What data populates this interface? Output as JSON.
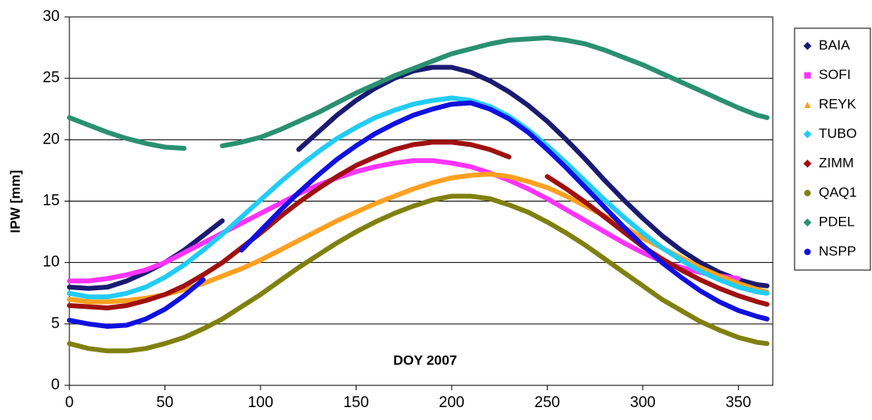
{
  "chart_data": {
    "type": "line",
    "xlabel": "DOY 2007",
    "ylabel": "IPW [mm]",
    "x": [
      0,
      10,
      20,
      30,
      40,
      50,
      60,
      70,
      80,
      90,
      100,
      110,
      120,
      130,
      140,
      150,
      160,
      170,
      180,
      190,
      200,
      210,
      220,
      230,
      240,
      250,
      260,
      270,
      280,
      290,
      300,
      310,
      320,
      330,
      340,
      350,
      360,
      365
    ],
    "series": [
      {
        "name": "BAIA",
        "color": "#1a1a72",
        "marker": "diamond",
        "values": [
          8.0,
          7.9,
          8.0,
          8.5,
          9.2,
          10.0,
          11.0,
          12.2,
          13.4,
          null,
          null,
          null,
          19.2,
          20.6,
          22.0,
          23.2,
          24.2,
          25.0,
          25.6,
          25.9,
          25.9,
          25.5,
          24.8,
          23.9,
          22.8,
          21.5,
          20.0,
          18.4,
          16.7,
          15.1,
          13.6,
          12.2,
          11.0,
          10.0,
          9.2,
          8.6,
          8.2,
          8.1
        ]
      },
      {
        "name": "SOFI",
        "color": "#ff33ff",
        "marker": "square",
        "values": [
          8.5,
          8.5,
          8.7,
          9.0,
          9.4,
          10.0,
          10.8,
          11.6,
          12.4,
          13.2,
          14.0,
          14.8,
          15.6,
          16.3,
          16.9,
          17.4,
          17.8,
          18.1,
          18.3,
          18.3,
          18.1,
          17.8,
          17.3,
          16.7,
          16.0,
          15.2,
          14.3,
          13.4,
          12.5,
          11.6,
          10.8,
          10.1,
          9.6,
          9.2,
          8.9,
          8.7,
          null,
          null
        ]
      },
      {
        "name": "REYK",
        "color": "#ffa020",
        "marker": "triangle",
        "values": [
          7.0,
          6.8,
          6.8,
          6.9,
          7.1,
          7.4,
          7.8,
          8.3,
          8.9,
          9.5,
          10.2,
          11.0,
          11.8,
          12.6,
          13.4,
          14.1,
          14.8,
          15.4,
          16.0,
          16.5,
          16.9,
          17.1,
          17.2,
          17.0,
          16.6,
          16.1,
          15.4,
          14.6,
          13.8,
          12.9,
          12.0,
          11.2,
          10.4,
          9.6,
          8.9,
          8.3,
          7.8,
          7.6
        ]
      },
      {
        "name": "TUBO",
        "color": "#22ccf5",
        "marker": "diamond",
        "values": [
          7.5,
          7.2,
          7.2,
          7.5,
          8.0,
          8.8,
          9.8,
          11.0,
          12.3,
          13.7,
          15.1,
          16.5,
          17.8,
          19.0,
          20.1,
          21.0,
          21.8,
          22.4,
          22.9,
          23.2,
          23.4,
          23.2,
          22.7,
          21.9,
          20.8,
          19.5,
          18.1,
          16.6,
          15.1,
          13.7,
          12.4,
          11.2,
          10.2,
          9.3,
          8.6,
          8.0,
          7.6,
          7.5
        ]
      },
      {
        "name": "ZIMM",
        "color": "#a01010",
        "marker": "diamond",
        "values": [
          6.5,
          6.4,
          6.3,
          6.5,
          6.9,
          7.4,
          8.1,
          9.0,
          10.0,
          11.2,
          12.4,
          13.7,
          14.9,
          16.0,
          17.0,
          17.9,
          18.6,
          19.2,
          19.6,
          19.8,
          19.8,
          19.6,
          19.2,
          18.6,
          null,
          17.0,
          16.0,
          14.9,
          13.7,
          12.5,
          11.3,
          10.3,
          9.4,
          8.6,
          7.9,
          7.3,
          6.8,
          6.6
        ]
      },
      {
        "name": "QAQ1",
        "color": "#808010",
        "marker": "circle",
        "values": [
          3.4,
          3.0,
          2.8,
          2.8,
          3.0,
          3.4,
          3.9,
          4.6,
          5.4,
          6.4,
          7.4,
          8.5,
          9.6,
          10.6,
          11.6,
          12.5,
          13.3,
          14.0,
          14.6,
          15.1,
          15.4,
          15.4,
          15.2,
          14.7,
          14.1,
          13.3,
          12.4,
          11.4,
          10.3,
          9.2,
          8.1,
          7.0,
          6.1,
          5.2,
          4.5,
          3.9,
          3.5,
          3.4
        ]
      },
      {
        "name": "PDEL",
        "color": "#2a9070",
        "marker": "diamond",
        "values": [
          21.8,
          21.2,
          20.6,
          20.1,
          19.7,
          19.4,
          19.3,
          null,
          19.5,
          19.8,
          20.2,
          20.8,
          21.5,
          22.2,
          23.0,
          23.8,
          24.5,
          25.2,
          25.8,
          26.4,
          27.0,
          27.4,
          27.8,
          28.1,
          28.2,
          28.3,
          28.1,
          27.8,
          27.3,
          26.7,
          26.1,
          25.4,
          24.7,
          24.0,
          23.3,
          22.6,
          22.0,
          21.8
        ]
      },
      {
        "name": "NSPP",
        "color": "#1010e0",
        "marker": "circle",
        "values": [
          5.3,
          5.0,
          4.8,
          4.9,
          5.4,
          6.2,
          7.3,
          8.6,
          null,
          11.0,
          12.6,
          14.2,
          15.7,
          17.1,
          18.4,
          19.5,
          20.5,
          21.3,
          22.0,
          22.5,
          22.9,
          23.0,
          22.5,
          21.7,
          20.6,
          19.2,
          17.7,
          16.1,
          14.5,
          12.9,
          11.4,
          10.0,
          8.8,
          7.7,
          6.8,
          6.1,
          5.6,
          5.4
        ]
      }
    ],
    "xlim": [
      0,
      368
    ],
    "xticks": [
      0,
      50,
      100,
      150,
      200,
      250,
      300,
      350
    ],
    "ylim": [
      0,
      30
    ],
    "yticks": [
      0,
      5,
      10,
      15,
      20,
      25,
      30
    ],
    "grid": true,
    "legend": "right"
  }
}
